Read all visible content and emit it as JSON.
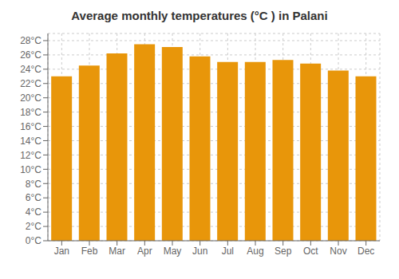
{
  "chart_data": {
    "type": "bar",
    "title": "Average monthly temperatures (°C ) in Palani",
    "categories": [
      "Jan",
      "Feb",
      "Mar",
      "Apr",
      "May",
      "Jun",
      "Jul",
      "Aug",
      "Sep",
      "Oct",
      "Nov",
      "Dec"
    ],
    "values": [
      23.0,
      24.5,
      26.2,
      27.5,
      27.1,
      25.8,
      25.0,
      25.0,
      25.3,
      24.8,
      23.8,
      23.0
    ],
    "color": "#E8960A",
    "ylim": [
      0,
      29
    ],
    "yticks": [
      {
        "value": 0,
        "label": "0°C"
      },
      {
        "value": 2,
        "label": "2°C"
      },
      {
        "value": 4,
        "label": "4°C"
      },
      {
        "value": 6,
        "label": "6°C"
      },
      {
        "value": 8,
        "label": "8°C"
      },
      {
        "value": 10,
        "label": "10°C"
      },
      {
        "value": 12,
        "label": "12°C"
      },
      {
        "value": 14,
        "label": "14°C"
      },
      {
        "value": 16,
        "label": "16°C"
      },
      {
        "value": 18,
        "label": "18°C"
      },
      {
        "value": 20,
        "label": "20°C"
      },
      {
        "value": 22,
        "label": "22°C"
      },
      {
        "value": 24,
        "label": "24°C"
      },
      {
        "value": 26,
        "label": "26°C"
      },
      {
        "value": 28,
        "label": "28°C"
      }
    ],
    "grid": true
  }
}
